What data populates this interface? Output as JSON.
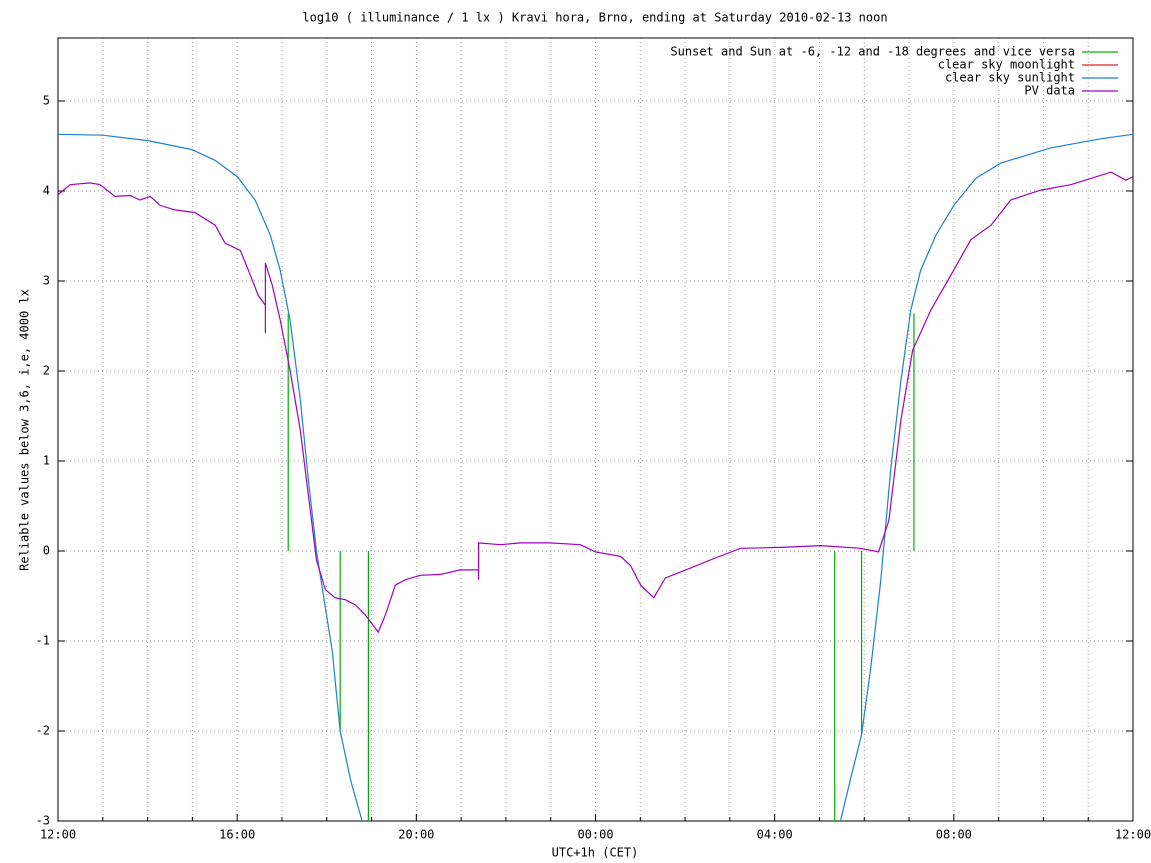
{
  "chart_data": {
    "type": "line",
    "title": "log10 ( illuminance / 1 lx ) Kravi hora, Brno, ending at Saturday 2010-02-13 noon",
    "xlabel": "UTC+1h (CET)",
    "ylabel": "Reliable values below 3,6, i,e, 4000 lx",
    "xlim": [
      0,
      24
    ],
    "ylim": [
      -3,
      5.7
    ],
    "xticks": [
      {
        "value": 0,
        "label": "12:00"
      },
      {
        "value": 4,
        "label": "16:00"
      },
      {
        "value": 8,
        "label": "20:00"
      },
      {
        "value": 12,
        "label": "00:00"
      },
      {
        "value": 16,
        "label": "04:00"
      },
      {
        "value": 20,
        "label": "08:00"
      },
      {
        "value": 24,
        "label": "12:00"
      }
    ],
    "xminorticks": [
      1,
      2,
      3,
      5,
      6,
      7,
      9,
      10,
      11,
      13,
      14,
      15,
      17,
      18,
      19,
      21,
      22,
      23
    ],
    "yticks": [
      -3,
      -2,
      -1,
      0,
      1,
      2,
      3,
      4,
      5
    ],
    "grid": true,
    "legend": "top-right",
    "series": [
      {
        "name": "Sunset and Sun at -6, -12 and -18 degrees and vice versa",
        "color": "#00b000",
        "x": [
          5.14,
          5.14,
          5.14,
          6.3,
          6.3,
          6.3,
          6.93,
          6.93,
          6.93,
          17.34,
          17.34,
          17.34,
          17.94,
          17.94,
          17.94,
          19.11,
          19.11
        ],
        "values": [
          0,
          2.64,
          null,
          0,
          -2.0,
          null,
          0,
          -3,
          null,
          0,
          -3,
          null,
          0,
          -2.04,
          null,
          0,
          2.64
        ]
      },
      {
        "name": "clear sky moonlight",
        "color": "#e02020",
        "x": [],
        "values": []
      },
      {
        "name": "clear sky sunlight",
        "color": "#1e80d0",
        "x": [
          0,
          1,
          2.01,
          2.99,
          3.51,
          4,
          4.4,
          4.74,
          4.96,
          5.18,
          5.41,
          5.59,
          5.77,
          5.94,
          6.12,
          6.3,
          6.53,
          6.79,
          null,
          17.47,
          17.69,
          17.94,
          18.14,
          18.37,
          18.59,
          18.82,
          19.04,
          19.26,
          19.6,
          20,
          20.49,
          21.05,
          22.17,
          23.28,
          24
        ],
        "values": [
          4.63,
          4.62,
          4.56,
          4.46,
          4.34,
          4.16,
          3.9,
          3.51,
          3.12,
          2.57,
          1.68,
          0.79,
          0,
          -0.54,
          -1.1,
          -2.0,
          -2.54,
          -3,
          null,
          -3,
          -2.54,
          -2.04,
          -1.32,
          -0.32,
          0.9,
          1.9,
          2.68,
          3.12,
          3.51,
          3.84,
          4.14,
          4.31,
          4.48,
          4.58,
          4.63
        ]
      },
      {
        "name": "PV data",
        "color": "#a000c0",
        "x": [
          0,
          0.27,
          0.72,
          0.94,
          1.27,
          1.61,
          1.83,
          2.06,
          2.28,
          2.61,
          3.06,
          3.51,
          3.73,
          4.07,
          4.29,
          4.47,
          4.63,
          4.63,
          4.63,
          4.78,
          4.96,
          5.18,
          5.41,
          5.63,
          5.77,
          5.97,
          6.19,
          6.41,
          6.64,
          6.86,
          7.15,
          7.31,
          7.53,
          7.75,
          8.09,
          8.54,
          8.98,
          9.39,
          9.39,
          9.39,
          9.88,
          10.32,
          10.99,
          11.66,
          12,
          12.56,
          12.78,
          13.01,
          13.3,
          13.56,
          14.12,
          14.56,
          15.24,
          16.13,
          17.03,
          17.92,
          18.32,
          18.55,
          18.82,
          19.08,
          19.49,
          19.94,
          20.38,
          20.83,
          21.27,
          21.94,
          22.61,
          23.06,
          23.51,
          23.84,
          24
        ],
        "values": [
          3.96,
          4.07,
          4.09,
          4.07,
          3.94,
          3.95,
          3.9,
          3.94,
          3.84,
          3.79,
          3.76,
          3.62,
          3.42,
          3.34,
          3.07,
          2.84,
          2.73,
          2.42,
          3.2,
          2.96,
          2.57,
          2.01,
          1.34,
          0.46,
          -0.1,
          -0.43,
          -0.52,
          -0.54,
          -0.6,
          -0.71,
          -0.9,
          -0.71,
          -0.38,
          -0.32,
          -0.27,
          -0.26,
          -0.21,
          -0.21,
          -0.32,
          0.09,
          0.07,
          0.09,
          0.09,
          0.07,
          -0.01,
          -0.06,
          -0.16,
          -0.38,
          -0.52,
          -0.3,
          -0.19,
          -0.1,
          0.03,
          0.04,
          0.06,
          0.03,
          -0.01,
          0.34,
          1.46,
          2.23,
          2.68,
          3.07,
          3.46,
          3.62,
          3.9,
          4.01,
          4.07,
          4.14,
          4.21,
          4.12,
          4.16
        ]
      }
    ]
  }
}
